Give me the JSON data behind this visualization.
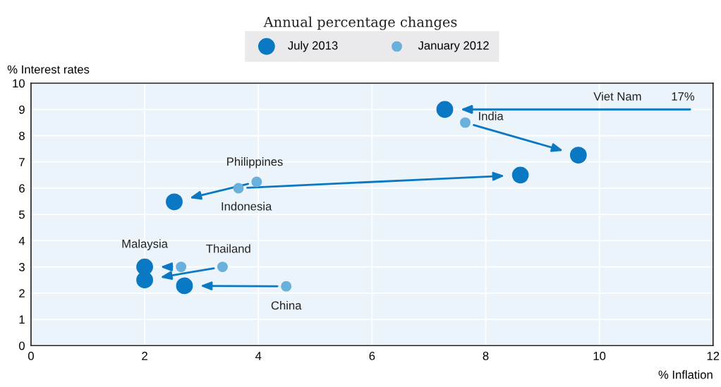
{
  "chart_data": {
    "type": "scatter",
    "title": "Annual percentage changes",
    "xlabel": "% Inflation",
    "ylabel": "% Interest rates",
    "series": [
      {
        "name": "July 2013",
        "color": "#0a78c2",
        "x": [
          7.28,
          9.63,
          8.61,
          2.52,
          2.0,
          2.0,
          2.7
        ],
        "values": [
          9.0,
          7.26,
          6.5,
          5.48,
          3.0,
          2.5,
          2.28
        ]
      },
      {
        "name": "January 2012",
        "color": "#69b0dc",
        "x": [
          null,
          7.64,
          3.65,
          3.97,
          2.64,
          3.37,
          4.49
        ],
        "values": [
          null,
          8.5,
          6.0,
          6.24,
          3.0,
          3.0,
          2.26
        ]
      }
    ],
    "annotations": [
      "Viet Nam",
      {
        "text": "India",
        "x": 7.64,
        "y": 8.5
      },
      {
        "text": "Indonesia",
        "x": 3.65,
        "y": 6.0
      },
      {
        "text": "Philippines",
        "x": 3.97,
        "y": 6.24
      },
      {
        "text": "Malaysia",
        "x": 2.0,
        "y": 3.0
      },
      {
        "text": "Thailand",
        "x": 3.37,
        "y": 3.0
      },
      {
        "text": "China",
        "x": 4.49,
        "y": 2.26
      },
      "17%"
    ],
    "xlim": [
      0,
      12
    ],
    "xticks": [
      0,
      2,
      4,
      6,
      8,
      10,
      12
    ],
    "ylim": [
      0,
      10
    ],
    "yticks": [
      0,
      1,
      2,
      3,
      4,
      5,
      6,
      7,
      8,
      9,
      10
    ],
    "grid": true,
    "legend": "top",
    "marker": "circle"
  }
}
